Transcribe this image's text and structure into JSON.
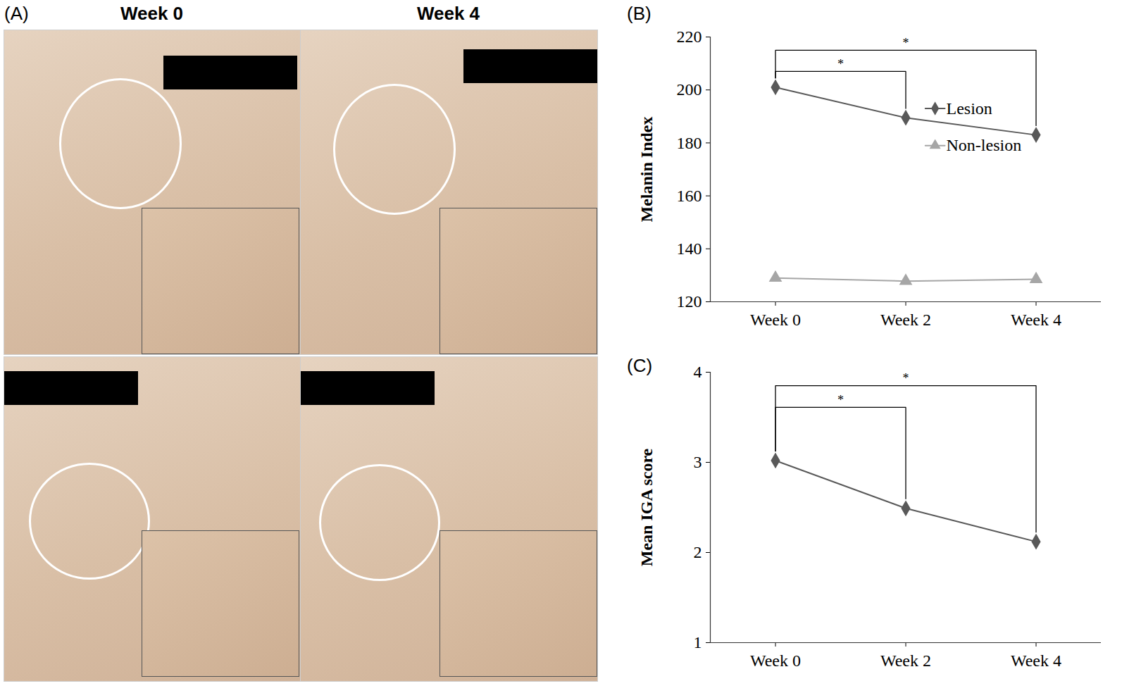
{
  "photo_panel": {
    "label": "(A)",
    "columns": [
      "Week 0",
      "Week 4"
    ]
  },
  "chart_data": [
    {
      "type": "line",
      "panel_label": "(B)",
      "y_label": "Melanin Index",
      "categories": [
        "Week 0",
        "Week 2",
        "Week 4"
      ],
      "series": [
        {
          "name": "Lesion",
          "color": "#595959",
          "marker": "diamond",
          "values": [
            201,
            189.5,
            183
          ]
        },
        {
          "name": "Non-lesion",
          "color": "#a6a6a6",
          "marker": "triangle",
          "values": [
            129,
            127.8,
            128.5
          ]
        }
      ],
      "ylim": [
        120,
        220
      ],
      "yticks": [
        120,
        140,
        160,
        180,
        200,
        220
      ],
      "legend": "right",
      "annotations": [
        {
          "from": "Week 0",
          "to": "Week 2",
          "text": "*"
        },
        {
          "from": "Week 0",
          "to": "Week 4",
          "text": "*"
        }
      ]
    },
    {
      "type": "line",
      "panel_label": "(C)",
      "y_label": "Mean IGA score",
      "categories": [
        "Week 0",
        "Week 2",
        "Week 4"
      ],
      "color": "#595959",
      "marker": "diamond",
      "values": [
        3.02,
        2.49,
        2.12
      ],
      "ylim": [
        1,
        4
      ],
      "yticks": [
        1,
        2,
        3,
        4
      ],
      "annotations": [
        {
          "from": "Week 0",
          "to": "Week 2",
          "text": "*"
        },
        {
          "from": "Week 0",
          "to": "Week 4",
          "text": "*"
        }
      ]
    }
  ]
}
